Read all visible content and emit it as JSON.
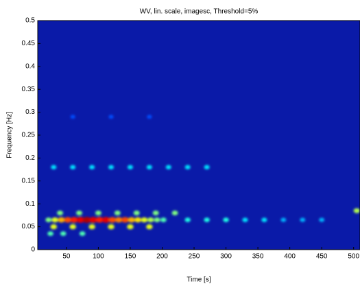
{
  "chart_data": {
    "type": "image",
    "title": "WV, lin. scale, imagesc, Threshold=5%",
    "xlabel": "Time [s]",
    "ylabel": "Frequency [Hz]",
    "xlim": [
      5,
      510
    ],
    "ylim": [
      0,
      0.5
    ],
    "xticks": [
      50,
      100,
      150,
      200,
      250,
      300,
      350,
      400,
      450,
      500
    ],
    "yticks": [
      0,
      0.05,
      0.1,
      0.15,
      0.2,
      0.25,
      0.3,
      0.35,
      0.4,
      0.45,
      0.5
    ],
    "clim": [
      0,
      1
    ],
    "colormap": [
      "#00008f",
      "#0000ff",
      "#00ffff",
      "#ffff00",
      "#ff0000",
      "#800000"
    ],
    "spots": {
      "x": [
        22,
        32,
        42,
        52,
        62,
        72,
        82,
        92,
        102,
        112,
        122,
        132,
        142,
        152,
        162,
        172,
        182,
        192,
        202,
        240,
        270,
        300,
        330,
        360,
        390,
        420,
        450,
        30,
        60,
        90,
        120,
        150,
        180,
        40,
        70,
        100,
        130,
        160,
        190,
        220,
        25,
        45,
        75,
        30,
        60,
        90,
        120,
        150,
        180,
        210,
        240,
        270,
        60,
        120,
        180,
        505
      ],
      "y": [
        0.065,
        0.065,
        0.065,
        0.065,
        0.065,
        0.065,
        0.065,
        0.065,
        0.065,
        0.065,
        0.065,
        0.065,
        0.065,
        0.065,
        0.065,
        0.065,
        0.065,
        0.065,
        0.065,
        0.065,
        0.065,
        0.065,
        0.065,
        0.065,
        0.065,
        0.065,
        0.065,
        0.05,
        0.05,
        0.05,
        0.05,
        0.05,
        0.05,
        0.08,
        0.08,
        0.08,
        0.08,
        0.08,
        0.08,
        0.08,
        0.035,
        0.035,
        0.035,
        0.18,
        0.18,
        0.18,
        0.18,
        0.18,
        0.18,
        0.18,
        0.18,
        0.18,
        0.29,
        0.29,
        0.29,
        0.085
      ],
      "intensity": [
        0.5,
        0.6,
        0.7,
        0.8,
        0.85,
        0.9,
        0.95,
        0.9,
        0.85,
        0.9,
        0.8,
        0.75,
        0.8,
        0.7,
        0.65,
        0.6,
        0.55,
        0.5,
        0.45,
        0.4,
        0.4,
        0.4,
        0.35,
        0.35,
        0.3,
        0.3,
        0.3,
        0.6,
        0.6,
        0.6,
        0.6,
        0.6,
        0.6,
        0.5,
        0.5,
        0.5,
        0.5,
        0.5,
        0.5,
        0.5,
        0.45,
        0.45,
        0.45,
        0.35,
        0.35,
        0.35,
        0.35,
        0.35,
        0.35,
        0.35,
        0.35,
        0.35,
        0.2,
        0.2,
        0.2,
        0.55
      ]
    }
  }
}
